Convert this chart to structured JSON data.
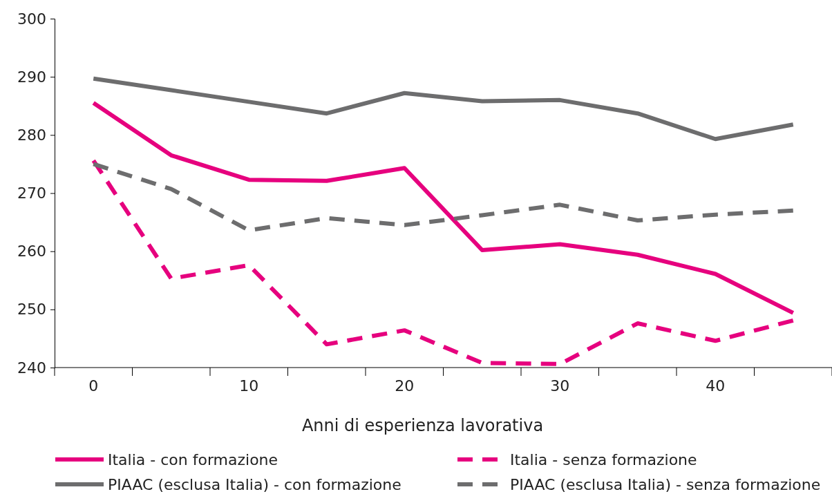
{
  "chart_data": {
    "type": "line",
    "xlabel": "Anni di esperienza lavorativa",
    "categories": [
      "0",
      null,
      "10",
      null,
      "20",
      null,
      "30",
      null,
      "40",
      null
    ],
    "ylim": [
      240,
      300
    ],
    "yticks": [
      240,
      250,
      260,
      270,
      280,
      290,
      300
    ],
    "grid": false,
    "legend": "bottom",
    "marker": "none",
    "series": [
      {
        "name": "Italia - con formazione",
        "color": "#e6007e",
        "line_style": "solid",
        "values": [
          285.5,
          276.5,
          272.3,
          272.1,
          274.3,
          260.2,
          261.2,
          259.4,
          256.1,
          249.4
        ]
      },
      {
        "name": "Italia - senza formazione",
        "color": "#e6007e",
        "line_style": "dashed",
        "values": [
          275.6,
          255.3,
          257.6,
          244.0,
          246.4,
          240.8,
          240.6,
          247.6,
          244.6,
          248.1
        ]
      },
      {
        "name": "PIAAC (esclusa Italia) - con formazione",
        "color": "#6d6d6e",
        "line_style": "solid",
        "values": [
          289.7,
          287.7,
          285.7,
          283.7,
          287.2,
          285.8,
          286.0,
          283.7,
          279.3,
          281.8
        ]
      },
      {
        "name": "PIAAC (esclusa Italia) - senza formazione",
        "color": "#6d6d6e",
        "line_style": "dashed",
        "values": [
          275.0,
          270.7,
          263.6,
          265.7,
          264.5,
          266.2,
          268.0,
          265.3,
          266.3,
          267.0
        ]
      }
    ]
  }
}
